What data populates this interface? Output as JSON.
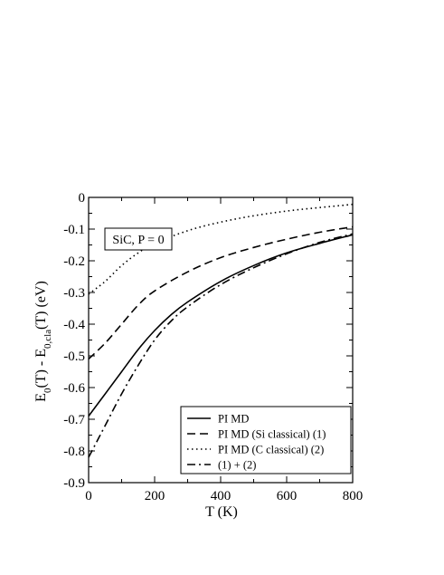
{
  "chart_data": {
    "type": "line",
    "annotation": "SiC, P = 0",
    "xlabel": "T (K)",
    "ylabel": {
      "parts": [
        {
          "t": "E",
          "sub": false
        },
        {
          "t": "0",
          "sub": true
        },
        {
          "t": "(T) - E",
          "sub": false
        },
        {
          "t": "0,cla",
          "sub": true
        },
        {
          "t": "(T)   (eV)",
          "sub": false
        }
      ]
    },
    "xlim": [
      0,
      800
    ],
    "ylim": [
      -0.9,
      0
    ],
    "xticks": [
      0,
      200,
      400,
      600,
      800
    ],
    "xtick_labels": [
      "0",
      "200",
      "400",
      "600",
      "800"
    ],
    "yticks": [
      0,
      -0.1,
      -0.2,
      -0.3,
      -0.4,
      -0.5,
      -0.6,
      -0.7,
      -0.8,
      -0.9
    ],
    "ytick_labels": [
      "0",
      "-0.1",
      "-0.2",
      "-0.3",
      "-0.4",
      "-0.5",
      "-0.6",
      "-0.7",
      "-0.8",
      "-0.9"
    ],
    "grid": false,
    "legend_position": "bottom-right",
    "series": [
      {
        "name": "PI MD",
        "style": "solid",
        "x": [
          0,
          50,
          100,
          150,
          200,
          250,
          300,
          400,
          500,
          600,
          700,
          800
        ],
        "y": [
          -0.69,
          -0.62,
          -0.55,
          -0.48,
          -0.42,
          -0.37,
          -0.33,
          -0.265,
          -0.215,
          -0.175,
          -0.145,
          -0.118
        ]
      },
      {
        "name": "PI MD (Si classical)  (1)",
        "style": "dashed",
        "x": [
          0,
          50,
          100,
          150,
          200,
          300,
          400,
          500,
          600,
          700,
          800
        ],
        "y": [
          -0.51,
          -0.46,
          -0.4,
          -0.34,
          -0.295,
          -0.235,
          -0.19,
          -0.158,
          -0.132,
          -0.11,
          -0.093
        ]
      },
      {
        "name": "PI MD (C  classical)  (2)",
        "style": "dotted",
        "x": [
          0,
          50,
          100,
          150,
          200,
          300,
          400,
          500,
          600,
          700,
          800
        ],
        "y": [
          -0.305,
          -0.265,
          -0.215,
          -0.175,
          -0.145,
          -0.105,
          -0.078,
          -0.058,
          -0.043,
          -0.032,
          -0.022
        ]
      },
      {
        "name": "(1) + (2)",
        "style": "dashdot",
        "x": [
          0,
          50,
          100,
          150,
          200,
          250,
          300,
          400,
          500,
          600,
          700,
          800
        ],
        "y": [
          -0.82,
          -0.72,
          -0.62,
          -0.53,
          -0.45,
          -0.39,
          -0.345,
          -0.275,
          -0.222,
          -0.178,
          -0.142,
          -0.115
        ]
      }
    ]
  }
}
